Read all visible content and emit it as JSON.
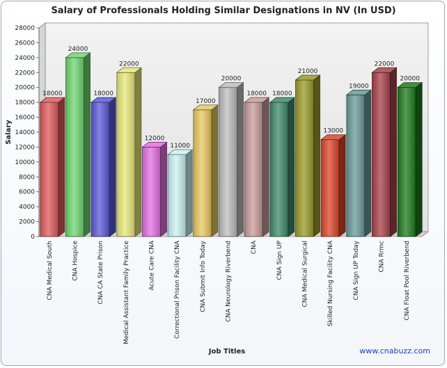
{
  "chart_data": {
    "type": "bar",
    "title": "Salary of Professionals Holding Similar Designations in NV (In USD)",
    "xlabel": "Job Titles",
    "ylabel": "Salary",
    "ylim": [
      0,
      28000
    ],
    "ytick_step": 2000,
    "grid": false,
    "categories": [
      "CNA Medical South",
      "CNA Hospice",
      "CNA CA State Prison",
      "Medical Assistant Family Practice",
      "Acute Care CNA",
      "Correctional Prison Facility CNA",
      "CNA Submit Info Today",
      "CNA Neurology Riverbend",
      "CNA",
      "CNA Sign UP",
      "CNA Medical Surgical",
      "Skilled Nursing Facility CNA",
      "CNA Sign UP Today",
      "CNA Rrmc",
      "CNA Float Pool Riverbend"
    ],
    "values": [
      18000,
      24000,
      18000,
      22000,
      12000,
      11000,
      17000,
      20000,
      18000,
      18000,
      21000,
      13000,
      19000,
      22000,
      20000
    ],
    "colors": [
      "#e05a5a",
      "#6fd66f",
      "#5a5ad8",
      "#e8e87a",
      "#e36fe3",
      "#c9f2f2",
      "#e8c860",
      "#bdbdbd",
      "#c89a9a",
      "#3f8a6a",
      "#9a9a2a",
      "#d9462a",
      "#6a9a9a",
      "#a8404a",
      "#1f7a1f"
    ]
  },
  "footer": {
    "credit": "www.cnabuzz.com"
  }
}
